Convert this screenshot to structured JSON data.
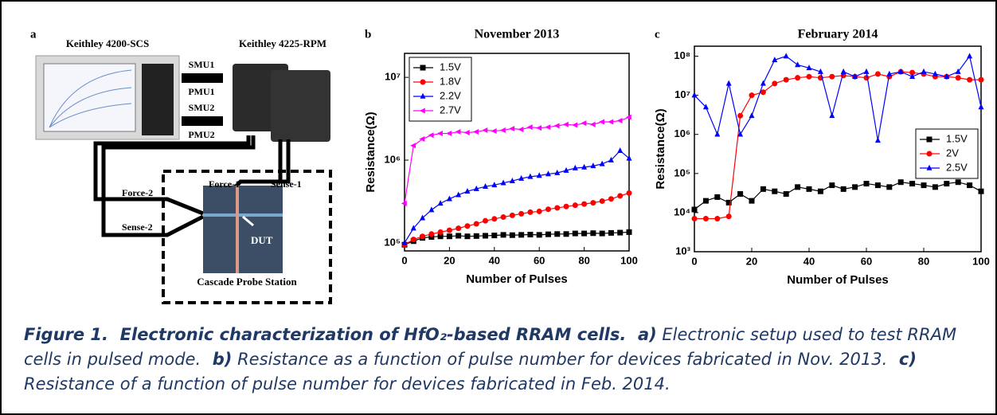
{
  "panel_a": {
    "letter": "a",
    "instrument_1": "Keithley 4200-SCS",
    "instrument_2": "Keithley 4225-RPM",
    "ports": [
      "SMU1",
      "PMU1",
      "SMU2",
      "PMU2"
    ],
    "probes": [
      "Force-1",
      "Sense-1",
      "Force-2",
      "Sense-2"
    ],
    "dut": "DUT",
    "station": "Cascade Probe Station"
  },
  "chart_data": [
    {
      "type": "line",
      "panel": "b",
      "title": "November 2013",
      "x_label": "Number of Pulses",
      "y_label": "Resistance(Ω)",
      "log_y": true,
      "legend": "top-left",
      "x": [
        0,
        4,
        8,
        12,
        16,
        20,
        24,
        28,
        32,
        36,
        40,
        44,
        48,
        52,
        56,
        60,
        64,
        68,
        72,
        76,
        80,
        84,
        88,
        92,
        96,
        100
      ],
      "xlim": [
        0,
        100
      ],
      "xticks": [
        0,
        20,
        40,
        60,
        80,
        100
      ],
      "ylim": [
        80000,
        19500000
      ],
      "yticks": [
        {
          "value": 100000,
          "label": "10⁵"
        },
        {
          "value": 1000000,
          "label": "10⁶"
        },
        {
          "value": 10000000,
          "label": "10⁷"
        }
      ],
      "series": [
        {
          "name": "1.5V",
          "color": "#000000",
          "marker": "square",
          "values": [
            95000,
            105000,
            115000,
            118000,
            120000,
            120000,
            122000,
            120000,
            121000,
            122000,
            123000,
            125000,
            124000,
            125000,
            126000,
            125000,
            127000,
            128000,
            128000,
            130000,
            130000,
            131000,
            130000,
            132000,
            133000,
            135000
          ]
        },
        {
          "name": "1.8V",
          "color": "#ff0000",
          "marker": "circle",
          "values": [
            95000,
            110000,
            120000,
            128000,
            135000,
            142000,
            150000,
            160000,
            170000,
            185000,
            195000,
            205000,
            215000,
            225000,
            235000,
            240000,
            255000,
            265000,
            275000,
            285000,
            295000,
            305000,
            320000,
            340000,
            370000,
            400000
          ]
        },
        {
          "name": "2.2V",
          "color": "#0000ff",
          "marker": "triangle-up",
          "values": [
            100000,
            150000,
            200000,
            250000,
            300000,
            340000,
            380000,
            420000,
            450000,
            480000,
            500000,
            530000,
            560000,
            600000,
            630000,
            650000,
            680000,
            700000,
            750000,
            800000,
            820000,
            850000,
            900000,
            1000000,
            1300000,
            1050000
          ]
        },
        {
          "name": "2.7V",
          "color": "#ff00ff",
          "marker": "triangle-left",
          "values": [
            300000,
            1500000,
            1800000,
            2000000,
            2100000,
            2100000,
            2200000,
            2150000,
            2200000,
            2300000,
            2250000,
            2300000,
            2400000,
            2350000,
            2500000,
            2450000,
            2500000,
            2600000,
            2700000,
            2650000,
            2800000,
            2700000,
            2900000,
            2900000,
            3000000,
            3300000
          ]
        }
      ]
    },
    {
      "type": "line",
      "panel": "c",
      "title": "February 2014",
      "x_label": "Number of Pulses",
      "y_label": "Resistance(Ω)",
      "log_y": true,
      "legend": "right",
      "x": [
        0,
        4,
        8,
        12,
        16,
        20,
        24,
        28,
        32,
        36,
        40,
        44,
        48,
        52,
        56,
        60,
        64,
        68,
        72,
        76,
        80,
        84,
        88,
        92,
        96,
        100
      ],
      "xlim": [
        0,
        100
      ],
      "xticks": [
        0,
        20,
        40,
        60,
        80,
        100
      ],
      "ylim": [
        1000,
        180000000
      ],
      "yticks": [
        {
          "value": 1000,
          "label": "10³"
        },
        {
          "value": 10000,
          "label": "10⁴"
        },
        {
          "value": 100000,
          "label": "10⁵"
        },
        {
          "value": 1000000,
          "label": "10⁶"
        },
        {
          "value": 10000000,
          "label": "10⁷"
        },
        {
          "value": 100000000,
          "label": "10⁸"
        }
      ],
      "series": [
        {
          "name": "1.5V",
          "color": "#000000",
          "marker": "square",
          "values": [
            12000,
            20000,
            25000,
            18000,
            30000,
            20000,
            40000,
            35000,
            30000,
            45000,
            40000,
            35000,
            50000,
            40000,
            45000,
            55000,
            50000,
            45000,
            60000,
            55000,
            50000,
            45000,
            55000,
            60000,
            50000,
            35000
          ]
        },
        {
          "name": "2V",
          "color": "#ff0000",
          "marker": "circle",
          "values": [
            7000,
            7000,
            7000,
            8000,
            3000000,
            10000000,
            12000000,
            20000000,
            25000000,
            28000000,
            30000000,
            28000000,
            30000000,
            32000000,
            30000000,
            28000000,
            35000000,
            30000000,
            40000000,
            38000000,
            35000000,
            30000000,
            30000000,
            28000000,
            25000000,
            25000000
          ]
        },
        {
          "name": "2.5V",
          "color": "#0000ff",
          "marker": "triangle-up",
          "values": [
            10000000,
            5000000,
            1000000,
            20000000,
            1000000,
            3000000,
            20000000,
            80000000,
            100000000,
            60000000,
            50000000,
            40000000,
            3000000,
            40000000,
            30000000,
            40000000,
            700000,
            35000000,
            40000000,
            30000000,
            40000000,
            35000000,
            30000000,
            40000000,
            100000000,
            5000000
          ]
        }
      ]
    }
  ],
  "caption": [
    {
      "text": "Figure 1.  Electronic characterization of HfO₂-based RRAM cells.",
      "bold": true
    },
    {
      "text": "  a)",
      "bold": true
    },
    {
      "text": " Electronic setup used to test RRAM cells in pulsed mode.",
      "bold": false
    },
    {
      "text": "  b)",
      "bold": true
    },
    {
      "text": " Resistance as a function of pulse number for devices fabricated in Nov. 2013.",
      "bold": false
    },
    {
      "text": "  c)",
      "bold": true
    },
    {
      "text": " Resistance of a function of pulse number for devices fabricated in Feb. 2014.",
      "bold": false
    }
  ]
}
